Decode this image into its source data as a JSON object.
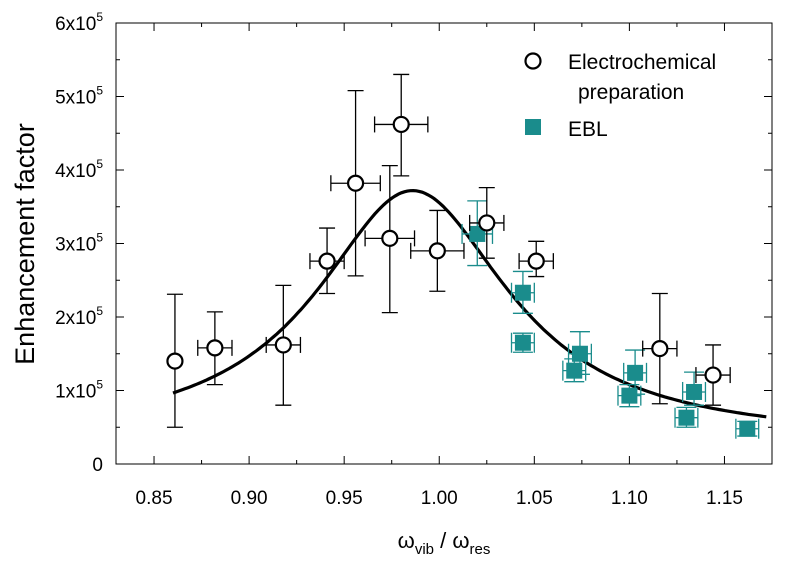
{
  "chart_data": {
    "type": "scatter",
    "ylabel": "Enhancement factor",
    "xlabel": {
      "base1": "ω",
      "sub1": "vib",
      "sep": " / ",
      "base2": "ω",
      "sub2": "res"
    },
    "xlim": [
      0.83,
      1.175
    ],
    "ylim": [
      0,
      600000
    ],
    "x_ticks": [
      {
        "value": 0.85,
        "label": "0.85"
      },
      {
        "value": 0.9,
        "label": "0.90"
      },
      {
        "value": 0.95,
        "label": "0.95"
      },
      {
        "value": 1.0,
        "label": "1.00"
      },
      {
        "value": 1.05,
        "label": "1.05"
      },
      {
        "value": 1.1,
        "label": "1.10"
      },
      {
        "value": 1.15,
        "label": "1.15"
      }
    ],
    "y_ticks": [
      {
        "value": 0,
        "mant": "0",
        "exp": ""
      },
      {
        "value": 100000,
        "mant": "1x10",
        "exp": "5"
      },
      {
        "value": 200000,
        "mant": "2x10",
        "exp": "5"
      },
      {
        "value": 300000,
        "mant": "3x10",
        "exp": "5"
      },
      {
        "value": 400000,
        "mant": "4x10",
        "exp": "5"
      },
      {
        "value": 500000,
        "mant": "5x10",
        "exp": "5"
      },
      {
        "value": 600000,
        "mant": "6x10",
        "exp": "5"
      }
    ],
    "legend": {
      "placement": "top-right",
      "entries": [
        {
          "label_lines": [
            "Electrochemical",
            "preparation"
          ],
          "marker": "open-circle"
        },
        {
          "label_lines": [
            "EBL"
          ],
          "marker": "filled-square"
        }
      ]
    },
    "colors": {
      "ebl": "#1a8c8c",
      "ebl_error": "#1a8c8c",
      "electro": "#000000",
      "fit": "#000000"
    },
    "series": [
      {
        "name": "Electrochemical preparation",
        "marker": "open-circle",
        "points": [
          {
            "x": 0.861,
            "y": 140000,
            "xerr": 0,
            "ylo": 50000,
            "yhi": 231000
          },
          {
            "x": 0.882,
            "y": 158000,
            "xerr": 0.009,
            "ylo": 108000,
            "yhi": 207000
          },
          {
            "x": 0.918,
            "y": 162000,
            "xerr": 0.009,
            "ylo": 80000,
            "yhi": 243000
          },
          {
            "x": 0.941,
            "y": 276000,
            "xerr": 0.009,
            "ylo": 232000,
            "yhi": 321000
          },
          {
            "x": 0.956,
            "y": 382000,
            "xerr": 0.013,
            "ylo": 256000,
            "yhi": 508000
          },
          {
            "x": 0.974,
            "y": 307000,
            "xerr": 0.013,
            "ylo": 206000,
            "yhi": 406000
          },
          {
            "x": 0.98,
            "y": 462000,
            "xerr": 0.014,
            "ylo": 392000,
            "yhi": 530000
          },
          {
            "x": 0.999,
            "y": 290000,
            "xerr": 0.014,
            "ylo": 235000,
            "yhi": 345000
          },
          {
            "x": 1.025,
            "y": 328000,
            "xerr": 0.009,
            "ylo": 280000,
            "yhi": 376000
          },
          {
            "x": 1.051,
            "y": 276000,
            "xerr": 0.009,
            "ylo": 255000,
            "yhi": 303000
          },
          {
            "x": 1.116,
            "y": 157000,
            "xerr": 0.009,
            "ylo": 82000,
            "yhi": 232000
          },
          {
            "x": 1.144,
            "y": 121000,
            "xerr": 0.009,
            "ylo": 80000,
            "yhi": 162000
          }
        ]
      },
      {
        "name": "EBL",
        "marker": "filled-square",
        "points": [
          {
            "x": 1.02,
            "y": 313000,
            "xerr": 0.008,
            "ylo": 270000,
            "yhi": 358000
          },
          {
            "x": 1.044,
            "y": 233000,
            "xerr": 0.006,
            "ylo": 205000,
            "yhi": 262000
          },
          {
            "x": 1.044,
            "y": 165000,
            "xerr": 0.006,
            "ylo": 152000,
            "yhi": 178000
          },
          {
            "x": 1.074,
            "y": 150000,
            "xerr": 0.006,
            "ylo": 122000,
            "yhi": 180000
          },
          {
            "x": 1.071,
            "y": 127000,
            "xerr": 0.006,
            "ylo": 112000,
            "yhi": 143000
          },
          {
            "x": 1.103,
            "y": 124000,
            "xerr": 0.006,
            "ylo": 95000,
            "yhi": 155000
          },
          {
            "x": 1.1,
            "y": 93000,
            "xerr": 0.006,
            "ylo": 78000,
            "yhi": 108000
          },
          {
            "x": 1.134,
            "y": 98000,
            "xerr": 0.006,
            "ylo": 80000,
            "yhi": 125000
          },
          {
            "x": 1.13,
            "y": 63000,
            "xerr": 0.006,
            "ylo": 50000,
            "yhi": 77000
          },
          {
            "x": 1.162,
            "y": 48000,
            "xerr": 0.006,
            "ylo": 38000,
            "yhi": 58000
          }
        ]
      }
    ],
    "fit_curve": {
      "type": "lorentzian",
      "x0": 0.986,
      "peak": 372000,
      "gamma": 0.062,
      "baseline": 30000,
      "xrange": [
        0.86,
        1.172
      ]
    }
  }
}
